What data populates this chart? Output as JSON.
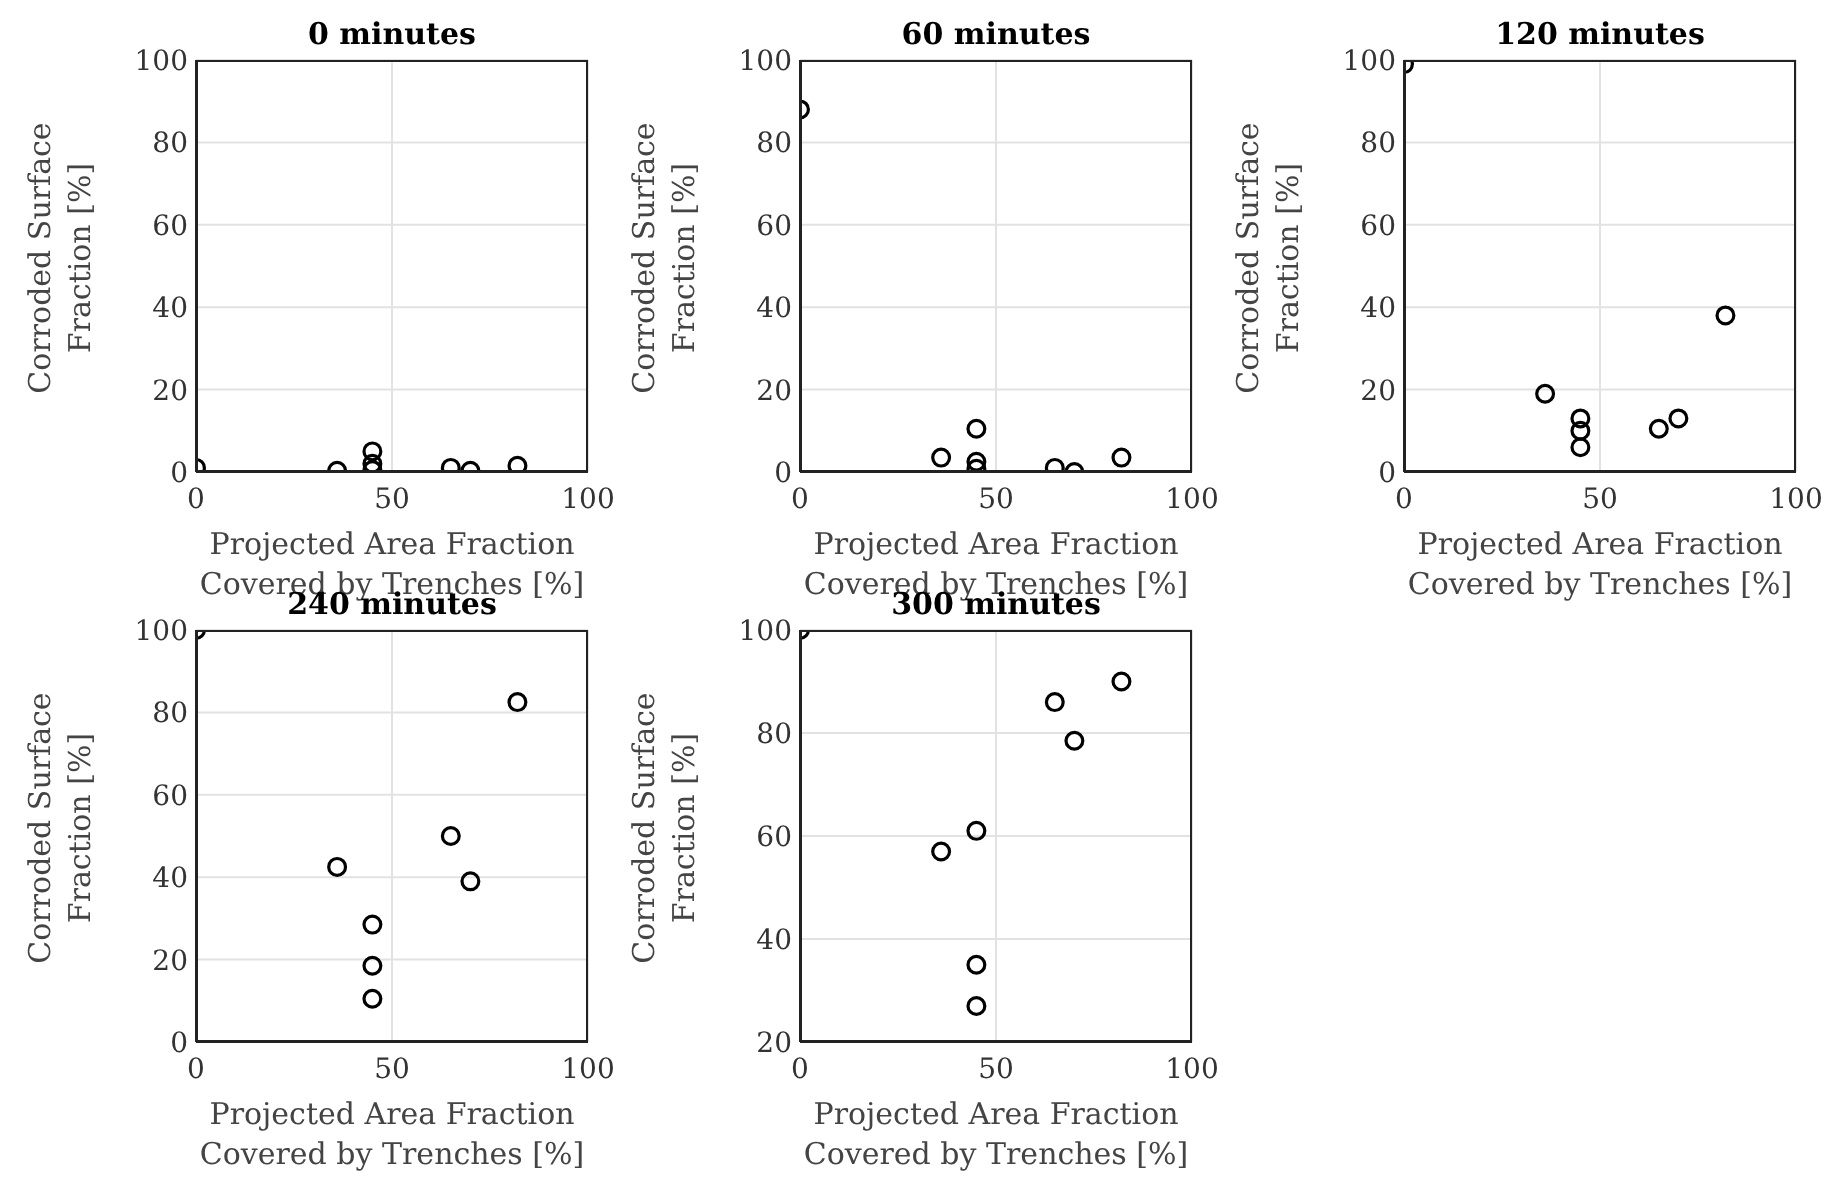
{
  "chart_data": [
    {
      "type": "scatter",
      "title": "0 minutes",
      "xlabel": "Projected Area Fraction Covered by Trenches [%]",
      "ylabel": "Corroded Surface Fraction [%]",
      "x": [
        0,
        36,
        45,
        45,
        45,
        65,
        70,
        82
      ],
      "values": [
        1,
        0.3,
        5,
        2,
        0.5,
        1,
        0.3,
        1.5
      ],
      "xlim": [
        0,
        100
      ],
      "xticks": [
        0,
        50,
        100
      ],
      "ylim": [
        0,
        100
      ],
      "yticks": [
        0,
        20,
        40,
        60,
        80,
        100
      ],
      "grid": true,
      "marker": "circle",
      "color": "#000000"
    },
    {
      "type": "scatter",
      "title": "60 minutes",
      "xlabel": "Projected Area Fraction Covered by Trenches [%]",
      "ylabel": "Corroded Surface Fraction [%]",
      "x": [
        0,
        36,
        45,
        45,
        45,
        65,
        70,
        82
      ],
      "values": [
        88,
        3.5,
        10.5,
        2.5,
        0.8,
        1,
        0,
        3.5
      ],
      "xlim": [
        0,
        100
      ],
      "xticks": [
        0,
        50,
        100
      ],
      "ylim": [
        0,
        100
      ],
      "yticks": [
        0,
        20,
        40,
        60,
        80,
        100
      ],
      "grid": true,
      "marker": "circle",
      "color": "#000000"
    },
    {
      "type": "scatter",
      "title": "120 minutes",
      "xlabel": "Projected Area Fraction Covered by Trenches [%]",
      "ylabel": "Corroded Surface Fraction [%]",
      "x": [
        0,
        36,
        45,
        45,
        45,
        65,
        70,
        82
      ],
      "values": [
        99,
        19,
        13,
        10,
        6,
        10.5,
        13,
        38
      ],
      "xlim": [
        0,
        100
      ],
      "xticks": [
        0,
        50,
        100
      ],
      "ylim": [
        0,
        100
      ],
      "yticks": [
        0,
        20,
        40,
        60,
        80,
        100
      ],
      "grid": true,
      "marker": "circle",
      "color": "#000000"
    },
    {
      "type": "scatter",
      "title": "240 minutes",
      "xlabel": "Projected Area Fraction Covered by Trenches [%]",
      "ylabel": "Corroded Surface Fraction [%]",
      "x": [
        0,
        36,
        45,
        45,
        45,
        65,
        70,
        82
      ],
      "values": [
        100,
        42.5,
        28.5,
        18.5,
        10.5,
        50,
        39,
        82.5
      ],
      "xlim": [
        0,
        100
      ],
      "xticks": [
        0,
        50,
        100
      ],
      "ylim": [
        0,
        100
      ],
      "yticks": [
        0,
        20,
        40,
        60,
        80,
        100
      ],
      "grid": true,
      "marker": "circle",
      "color": "#000000"
    },
    {
      "type": "scatter",
      "title": "300 minutes",
      "xlabel": "Projected Area Fraction Covered by Trenches [%]",
      "ylabel": "Corroded Surface Fraction [%]",
      "x": [
        0,
        36,
        45,
        45,
        45,
        65,
        70,
        82
      ],
      "values": [
        100,
        57,
        61,
        35,
        27,
        86,
        78.5,
        90
      ],
      "xlim": [
        0,
        100
      ],
      "xticks": [
        0,
        50,
        100
      ],
      "ylim": [
        20,
        100
      ],
      "yticks": [
        20,
        40,
        60,
        80,
        100
      ],
      "grid": true,
      "marker": "circle",
      "color": "#000000"
    }
  ]
}
